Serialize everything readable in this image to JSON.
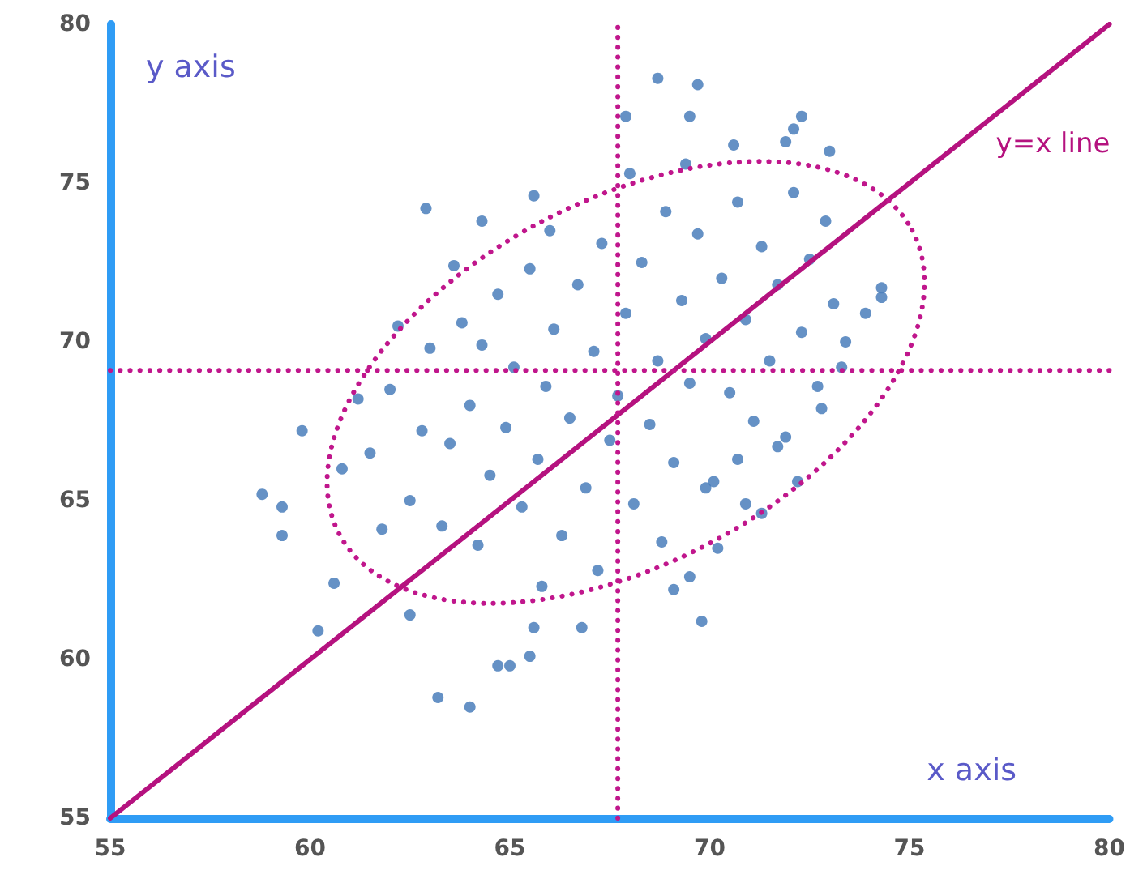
{
  "chart_data": {
    "type": "scatter",
    "xlabel": "x axis",
    "ylabel": "y axis",
    "xlim": [
      55,
      80
    ],
    "ylim": [
      55,
      80
    ],
    "xticks": [
      55,
      60,
      65,
      70,
      75,
      80
    ],
    "yticks": [
      55,
      60,
      65,
      70,
      75,
      80
    ],
    "grid": false,
    "marker": "circle",
    "series": [
      {
        "type": "scatter",
        "color": "#4a7ebb",
        "x": [
          62.9,
          65.6,
          64.3,
          68.7,
          69.7,
          67.9,
          69.5,
          72.3,
          72.1,
          71.9,
          73.0,
          74.3,
          74.3,
          73.9,
          73.4,
          58.8,
          59.3,
          59.3,
          59.8,
          60.6,
          60.2,
          63.2,
          64.0,
          65.0,
          65.5,
          64.7,
          65.6,
          66.8,
          62.5,
          69.1,
          69.8,
          69.5,
          71.3,
          70.9,
          71.7,
          70.7,
          69.9,
          72.8,
          61.5,
          62,
          62.5,
          62.8,
          63,
          63.3,
          63.5,
          63.8,
          64,
          64.2,
          64.5,
          64.7,
          64.9,
          65.1,
          65.3,
          65.5,
          65.7,
          65.9,
          66.1,
          66.3,
          66.5,
          66.7,
          66.9,
          67.1,
          67.3,
          67.5,
          67.7,
          67.9,
          68.1,
          68.3,
          68.5,
          68.7,
          68.9,
          69.1,
          69.3,
          69.5,
          69.7,
          69.9,
          70.1,
          70.3,
          70.5,
          70.7,
          70.9,
          71.1,
          71.3,
          71.5,
          71.7,
          71.9,
          72.1,
          72.3,
          72.5,
          72.7,
          72.9,
          73.1,
          73.3,
          66,
          64.3,
          62.2,
          63.6,
          68,
          69.4,
          70.6,
          67.2,
          65.8,
          61.8,
          60.8,
          61.2,
          68.8,
          70.2,
          72.2
        ],
        "values": [
          74.2,
          74.6,
          73.8,
          78.3,
          78.1,
          77.1,
          77.1,
          77.1,
          76.7,
          76.3,
          76.0,
          71.7,
          71.4,
          70.9,
          70.0,
          65.2,
          64.8,
          63.9,
          67.2,
          62.4,
          60.9,
          58.8,
          58.5,
          59.8,
          60.1,
          59.8,
          61.0,
          61.0,
          61.4,
          62.2,
          61.2,
          62.6,
          64.6,
          64.9,
          66.7,
          66.3,
          65.4,
          67.9,
          66.5,
          68.5,
          65,
          67.2,
          69.8,
          64.2,
          66.8,
          70.6,
          68,
          63.6,
          65.8,
          71.5,
          67.3,
          69.2,
          64.8,
          72.3,
          66.3,
          68.6,
          70.4,
          63.9,
          67.6,
          71.8,
          65.4,
          69.7,
          73.1,
          66.9,
          68.3,
          70.9,
          64.9,
          72.5,
          67.4,
          69.4,
          74.1,
          66.2,
          71.3,
          68.7,
          73.4,
          70.1,
          65.6,
          72,
          68.4,
          74.4,
          70.7,
          67.5,
          73,
          69.4,
          71.8,
          67,
          74.7,
          70.3,
          72.6,
          68.6,
          73.8,
          71.2,
          69.2,
          73.5,
          69.9,
          70.5,
          72.4,
          75.3,
          75.6,
          76.2,
          62.8,
          62.3,
          64.1,
          66,
          68.2,
          63.7,
          63.5,
          65.6
        ]
      },
      {
        "type": "line",
        "name": "y=x line",
        "color": "#b5127f",
        "marker": "none",
        "x": [
          55,
          80
        ],
        "values": [
          55,
          80
        ]
      }
    ],
    "ref_lines": [
      {
        "axis": "x",
        "value": 67.7,
        "color": "#c0168c",
        "line_style": "dotted"
      },
      {
        "axis": "y",
        "value": 69.1,
        "color": "#c0168c",
        "line_style": "dotted"
      }
    ]
  }
}
